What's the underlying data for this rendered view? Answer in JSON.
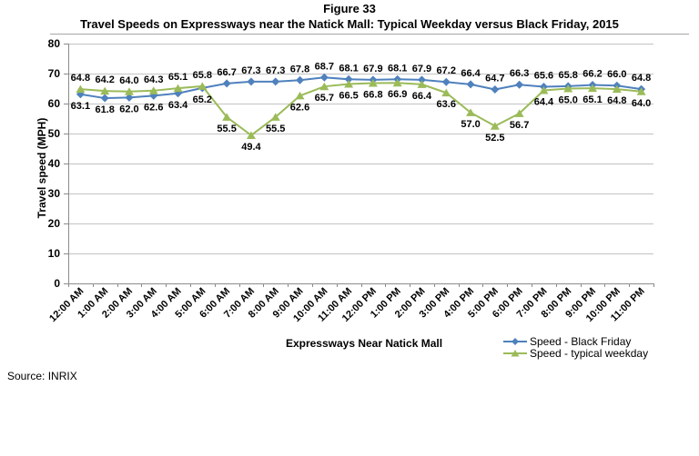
{
  "figure": {
    "title_line1": "Figure 33",
    "title_line2": "Travel Speeds on Expressways near the Natick Mall: Typical Weekday versus Black Friday, 2015",
    "source": "Source: INRIX"
  },
  "chart_data": {
    "type": "line",
    "title": "Travel Speeds on Expressways near the Natick Mall: Typical Weekday versus Black Friday, 2015",
    "xlabel": "Expressways Near Natick Mall",
    "ylabel": "Travel speed (MPH)",
    "ylim": [
      0,
      80
    ],
    "ytick_step": 10,
    "grid": true,
    "legend_position": "bottom-right",
    "data_labels": true,
    "label_decimals": 1,
    "categories": [
      "12:00 AM",
      "1:00 AM",
      "2:00 AM",
      "3:00 AM",
      "4:00 AM",
      "5:00 AM",
      "6:00 AM",
      "7:00 AM",
      "8:00 AM",
      "9:00 AM",
      "10:00 AM",
      "11:00 AM",
      "12:00 PM",
      "1:00 PM",
      "2:00 PM",
      "3:00 PM",
      "4:00 PM",
      "5:00 PM",
      "6:00 PM",
      "7:00 PM",
      "8:00 PM",
      "9:00 PM",
      "10:00 PM",
      "11:00 PM"
    ],
    "series": [
      {
        "name": "Speed - Black Friday",
        "color": "#4F81BD",
        "marker": "diamond",
        "values": [
          63.1,
          61.8,
          62.0,
          62.6,
          63.4,
          65.2,
          66.7,
          67.3,
          67.3,
          67.8,
          68.7,
          68.1,
          67.9,
          68.1,
          67.9,
          67.2,
          66.4,
          64.7,
          66.3,
          65.6,
          65.8,
          66.2,
          66.0,
          64.8
        ]
      },
      {
        "name": "Speed - typical weekday",
        "color": "#9BBB59",
        "marker": "triangle",
        "values": [
          64.8,
          64.2,
          64.0,
          64.3,
          65.1,
          65.8,
          55.5,
          49.4,
          55.5,
          62.6,
          65.7,
          66.5,
          66.8,
          66.9,
          66.4,
          63.6,
          57.0,
          52.5,
          56.7,
          64.4,
          65.0,
          65.1,
          64.8,
          64.0
        ]
      }
    ],
    "colors": {
      "gridline": "#C3C3C3",
      "axis": "#8C8C8C",
      "label_text": "#000000"
    }
  }
}
